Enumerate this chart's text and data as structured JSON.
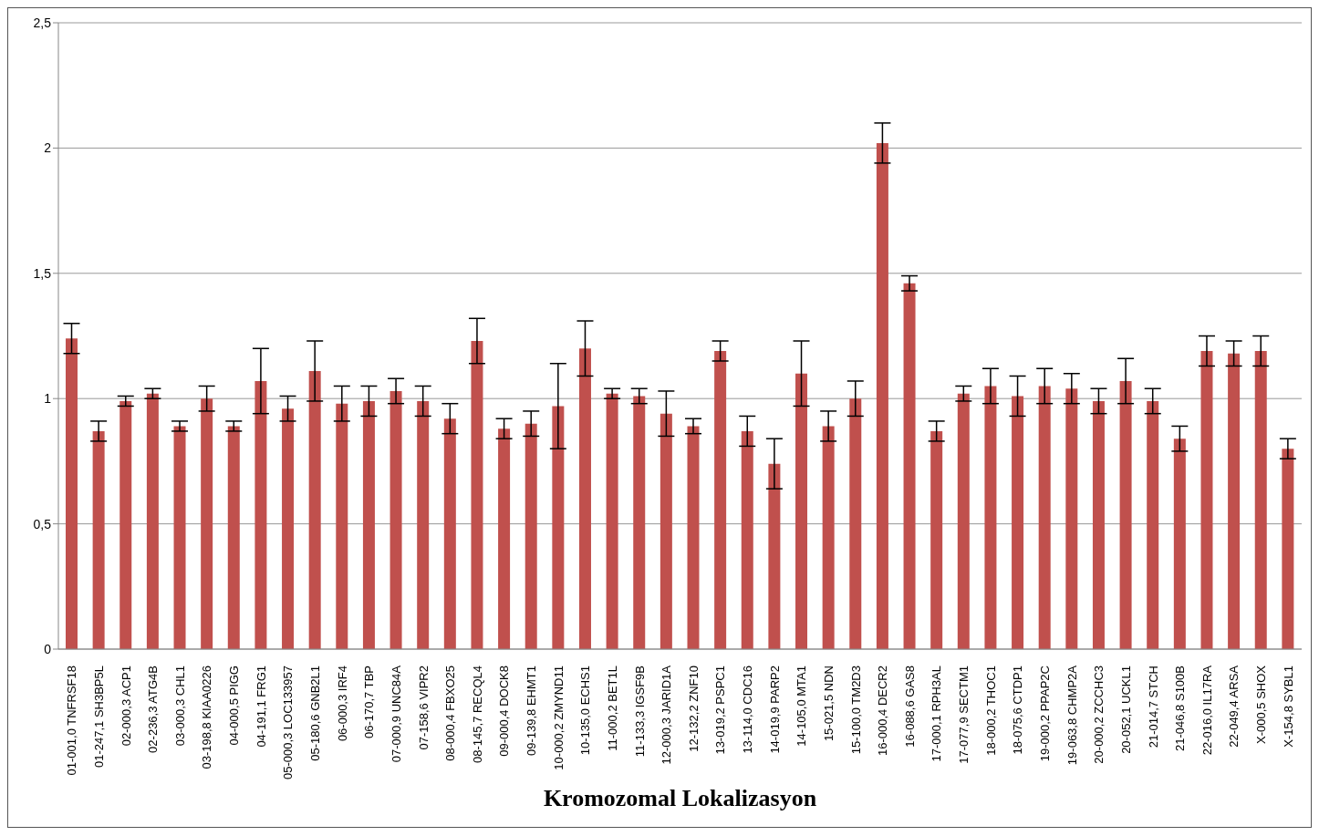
{
  "chart_data": {
    "type": "bar",
    "xlabel": "Kromozomal Lokalizasyon",
    "categories": [
      "01-001,0 TNFRSF18",
      "01-247,1 SH3BP5L",
      "02-000,3 ACP1",
      "02-236,3 ATG4B",
      "03-000,3 CHL1",
      "03-198,8 KIAA0226",
      "04-000,5 PIGG",
      "04-191,1 FRG1",
      "05-000,3 LOC133957",
      "05-180,6 GNB2L1",
      "06-000,3 IRF4",
      "06-170,7 TBP",
      "07-000,9 UNC84A",
      "07-158,6 VIPR2",
      "08-000,4 FBXO25",
      "08-145,7 RECQL4",
      "09-000,4 DOCK8",
      "09-139,8 EHMT1",
      "10-000,2 ZMYND11",
      "10-135,0 ECHS1",
      "11-000,2 BET1L",
      "11-133,3 IGSF9B",
      "12-000,3 JARID1A",
      "12-132,2 ZNF10",
      "13-019,2 PSPC1",
      "13-114,0 CDC16",
      "14-019,9 PARP2",
      "14-105,0 MTA1",
      "15-021,5 NDN",
      "15-100,0 TM2D3",
      "16-000,4 DECR2",
      "16-088,6 GAS8",
      "17-000,1 RPH3AL",
      "17-077,9 SECTM1",
      "18-000,2 THOC1",
      "18-075,6 CTDP1",
      "19-000,2 PPAP2C",
      "19-063,8 CHMP2A",
      "20-000,2 ZCCHC3",
      "20-052,1 UCKL1",
      "21-014,7 STCH",
      "21-046,8 S100B",
      "22-016,0 IL17RA",
      "22-049,4 ARSA",
      "X-000,5 SHOX",
      "X-154,8 SYBL1"
    ],
    "values": [
      1.24,
      0.87,
      0.99,
      1.02,
      0.89,
      1.0,
      0.89,
      1.07,
      0.96,
      1.11,
      0.98,
      0.99,
      1.03,
      0.99,
      0.92,
      1.23,
      0.88,
      0.9,
      0.97,
      1.2,
      1.02,
      1.01,
      0.94,
      0.89,
      1.19,
      0.87,
      0.74,
      1.1,
      0.89,
      1.0,
      2.02,
      1.46,
      0.87,
      1.02,
      1.05,
      1.01,
      1.05,
      1.04,
      0.99,
      1.07,
      0.99,
      0.84,
      1.19,
      1.18,
      1.19,
      0.8
    ],
    "errors": [
      0.06,
      0.04,
      0.02,
      0.02,
      0.02,
      0.05,
      0.02,
      0.13,
      0.05,
      0.12,
      0.07,
      0.06,
      0.05,
      0.06,
      0.06,
      0.09,
      0.04,
      0.05,
      0.17,
      0.11,
      0.02,
      0.03,
      0.09,
      0.03,
      0.04,
      0.06,
      0.1,
      0.13,
      0.06,
      0.07,
      0.08,
      0.03,
      0.04,
      0.03,
      0.07,
      0.08,
      0.07,
      0.06,
      0.05,
      0.09,
      0.05,
      0.05,
      0.06,
      0.05,
      0.06,
      0.04
    ],
    "color": "#c0504d",
    "ylim": [
      0,
      2.5
    ],
    "yticks": [
      {
        "value": 0,
        "label": "0"
      },
      {
        "value": 0.5,
        "label": "0,5"
      },
      {
        "value": 1,
        "label": "1"
      },
      {
        "value": 1.5,
        "label": "1,5"
      },
      {
        "value": 2,
        "label": "2"
      },
      {
        "value": 2.5,
        "label": "2,5"
      }
    ],
    "grid": "y",
    "legend": false
  }
}
